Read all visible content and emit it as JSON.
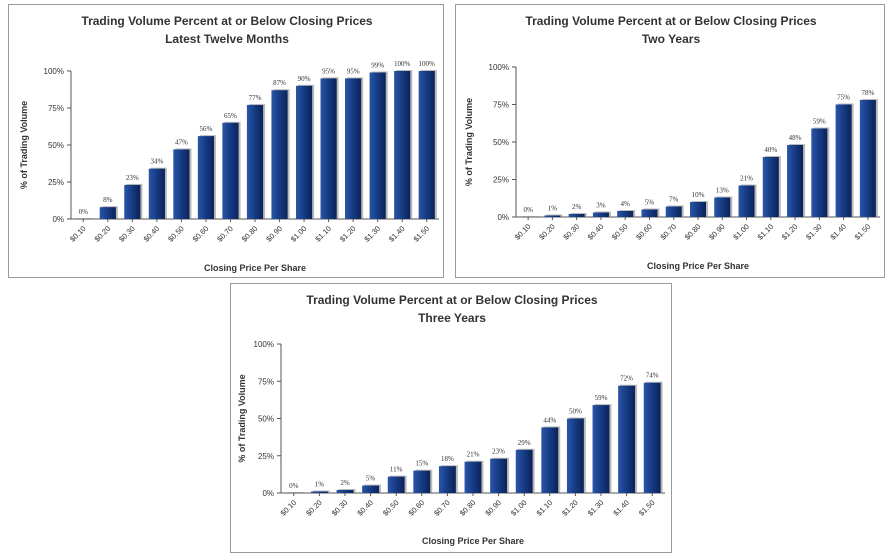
{
  "chart_data": [
    {
      "type": "bar",
      "title": "Trading Volume Percent at or Below Closing Prices",
      "subtitle": "Latest Twelve Months",
      "xlabel": "Closing Price Per Share",
      "ylabel": "% of Trading Volume",
      "ylim": [
        0,
        100
      ],
      "yticks": [
        "0%",
        "25%",
        "50%",
        "75%",
        "100%"
      ],
      "categories": [
        "$0.10",
        "$0.20",
        "$0.30",
        "$0.40",
        "$0.50",
        "$0.60",
        "$0.70",
        "$0.80",
        "$0.90",
        "$1.00",
        "$1.10",
        "$1.20",
        "$1.30",
        "$1.40",
        "$1.50"
      ],
      "values": [
        0,
        8,
        23,
        34,
        47,
        56,
        65,
        77,
        87,
        90,
        95,
        95,
        99,
        100,
        100
      ],
      "data_labels": [
        "0%",
        "8%",
        "23%",
        "34%",
        "47%",
        "56%",
        "65%",
        "77%",
        "87%",
        "90%",
        "95%",
        "95%",
        "99%",
        "100%",
        "100%"
      ],
      "grid": false,
      "bar_color": "#14387f"
    },
    {
      "type": "bar",
      "title": "Trading Volume Percent at or Below Closing Prices",
      "subtitle": "Two Years",
      "xlabel": "Closing Price Per Share",
      "ylabel": "% of Trading Volume",
      "ylim": [
        0,
        100
      ],
      "yticks": [
        "0%",
        "25%",
        "50%",
        "75%",
        "100%"
      ],
      "categories": [
        "$0.10",
        "$0.20",
        "$0.30",
        "$0.40",
        "$0.50",
        "$0.60",
        "$0.70",
        "$0.80",
        "$0.90",
        "$1.00",
        "$1.10",
        "$1.20",
        "$1.30",
        "$1.40",
        "$1.50"
      ],
      "values": [
        0,
        1,
        2,
        3,
        4,
        5,
        7,
        10,
        13,
        21,
        40,
        48,
        59,
        75,
        78
      ],
      "data_labels": [
        "0%",
        "1%",
        "2%",
        "3%",
        "4%",
        "5%",
        "7%",
        "10%",
        "13%",
        "21%",
        "40%",
        "48%",
        "59%",
        "75%",
        "78%"
      ],
      "grid": false,
      "bar_color": "#14387f"
    },
    {
      "type": "bar",
      "title": "Trading Volume Percent at or Below Closing Prices",
      "subtitle": "Three Years",
      "xlabel": "Closing Price Per Share",
      "ylabel": "% of Trading Volume",
      "ylim": [
        0,
        100
      ],
      "yticks": [
        "0%",
        "25%",
        "50%",
        "75%",
        "100%"
      ],
      "categories": [
        "$0.10",
        "$0.20",
        "$0.30",
        "$0.40",
        "$0.50",
        "$0.60",
        "$0.70",
        "$0.80",
        "$0.90",
        "$1.00",
        "$1.10",
        "$1.20",
        "$1.30",
        "$1.40",
        "$1.50"
      ],
      "values": [
        0,
        1,
        2,
        5,
        11,
        15,
        18,
        21,
        23,
        29,
        44,
        50,
        59,
        72,
        74
      ],
      "data_labels": [
        "0%",
        "1%",
        "2%",
        "5%",
        "11%",
        "15%",
        "18%",
        "21%",
        "23%",
        "29%",
        "44%",
        "50%",
        "59%",
        "72%",
        "74%"
      ],
      "grid": false,
      "bar_color": "#14387f"
    }
  ]
}
